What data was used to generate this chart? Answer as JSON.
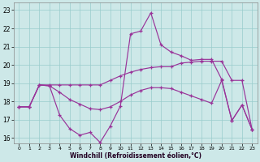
{
  "background_color": "#cde8e8",
  "line_color": "#993399",
  "grid_color": "#99cccc",
  "xlabel": "Windchill (Refroidissement éolien,°C)",
  "x_ticks": [
    0,
    1,
    2,
    3,
    4,
    5,
    6,
    7,
    8,
    9,
    10,
    11,
    12,
    13,
    14,
    15,
    16,
    17,
    18,
    19,
    20,
    21,
    22,
    23
  ],
  "y_ticks": [
    16,
    17,
    18,
    19,
    20,
    21,
    22,
    23
  ],
  "ylim": [
    15.7,
    23.4
  ],
  "xlim": [
    -0.5,
    23.5
  ],
  "series1_x": [
    0,
    1,
    2,
    3,
    4,
    5,
    6,
    7,
    8,
    9,
    10,
    11,
    12,
    13,
    14,
    15,
    16,
    17,
    18,
    19,
    20,
    21,
    22,
    23
  ],
  "series1_y": [
    17.7,
    17.7,
    18.9,
    18.85,
    17.25,
    16.5,
    16.15,
    16.3,
    15.75,
    16.65,
    17.75,
    21.7,
    21.85,
    22.85,
    21.1,
    20.7,
    20.5,
    20.25,
    20.3,
    20.3,
    19.2,
    16.95,
    17.8,
    16.45
  ],
  "series2_x": [
    0,
    1,
    2,
    3,
    4,
    5,
    6,
    7,
    8,
    9,
    10,
    11,
    12,
    13,
    14,
    15,
    16,
    17,
    18,
    19,
    20,
    21,
    22,
    23
  ],
  "series2_y": [
    17.7,
    17.7,
    18.9,
    18.9,
    18.9,
    18.9,
    18.9,
    18.9,
    18.9,
    19.15,
    19.4,
    19.6,
    19.75,
    19.85,
    19.9,
    19.9,
    20.1,
    20.15,
    20.2,
    20.2,
    20.2,
    19.15,
    19.15,
    16.45
  ],
  "series3_x": [
    0,
    1,
    2,
    3,
    4,
    5,
    6,
    7,
    8,
    9,
    10,
    11,
    12,
    13,
    14,
    15,
    16,
    17,
    18,
    19,
    20,
    21,
    22,
    23
  ],
  "series3_y": [
    17.7,
    17.7,
    18.9,
    18.85,
    18.5,
    18.1,
    17.85,
    17.6,
    17.55,
    17.7,
    18.0,
    18.35,
    18.6,
    18.75,
    18.75,
    18.7,
    18.5,
    18.3,
    18.1,
    17.9,
    19.15,
    16.95,
    17.8,
    16.45
  ]
}
